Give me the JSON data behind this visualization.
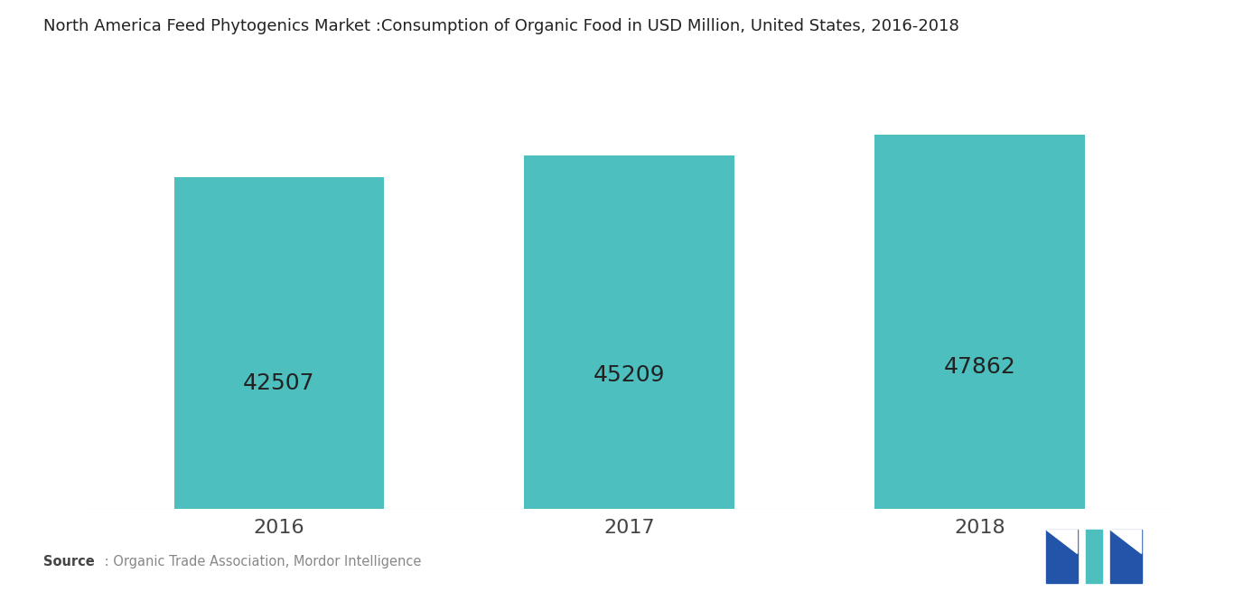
{
  "title": "North America Feed Phytogenics Market :Consumption of Organic Food in USD Million, United States, 2016-2018",
  "categories": [
    "2016",
    "2017",
    "2018"
  ],
  "values": [
    42507,
    45209,
    47862
  ],
  "bar_color": "#4DBFBF",
  "label_color": "#222222",
  "label_fontsize": 18,
  "title_fontsize": 13,
  "tick_fontsize": 16,
  "background_color": "#ffffff",
  "ylim_min": 0,
  "ylim_max": 53000,
  "bar_width": 0.6,
  "source_bold_color": "#444444",
  "source_color": "#888888",
  "source_fontsize": 10.5
}
